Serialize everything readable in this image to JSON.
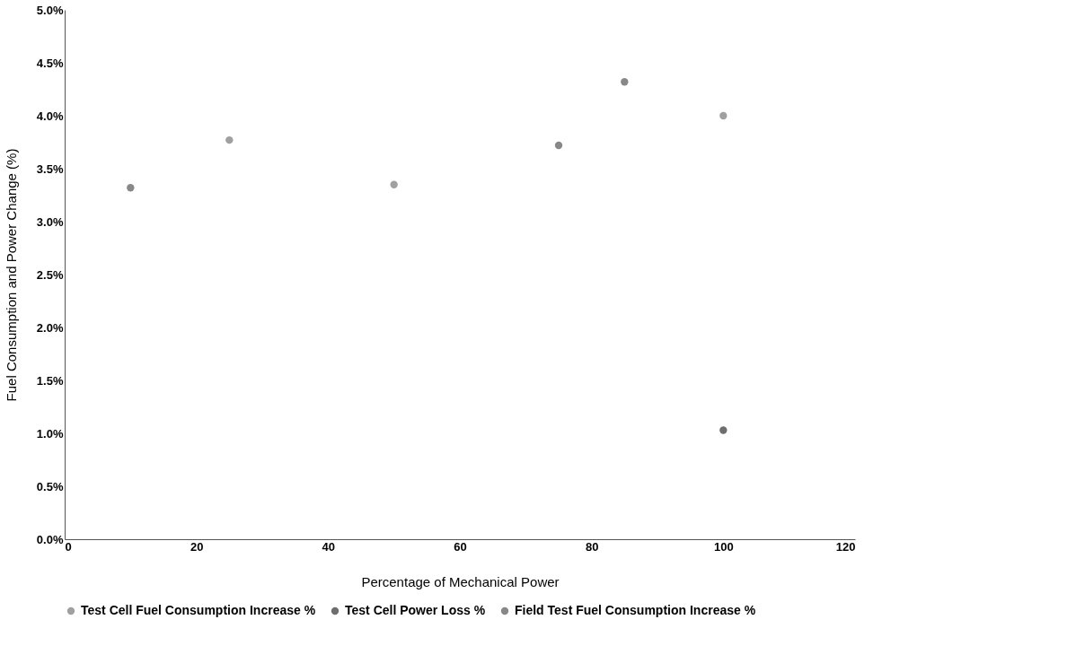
{
  "chart_data": {
    "type": "scatter",
    "xlabel": "Percentage of Mechanical Power",
    "ylabel": "Fuel Consumption and Power Change (%)",
    "xlim": [
      0,
      120
    ],
    "xticks": [
      0,
      20,
      40,
      60,
      80,
      100,
      120
    ],
    "ylim": [
      0,
      5
    ],
    "yticks": [
      {
        "value": 0,
        "label": "0.0%"
      },
      {
        "value": 0.5,
        "label": "0.5%"
      },
      {
        "value": 1,
        "label": "1.0%"
      },
      {
        "value": 1.5,
        "label": "1.5%"
      },
      {
        "value": 2,
        "label": "2.0%"
      },
      {
        "value": 2.5,
        "label": "2.5%"
      },
      {
        "value": 3,
        "label": "3.0%"
      },
      {
        "value": 3.5,
        "label": "3.5%"
      },
      {
        "value": 4,
        "label": "4.0%"
      },
      {
        "value": 4.5,
        "label": "4.5%"
      },
      {
        "value": 5,
        "label": "5.0%"
      }
    ],
    "grid": false,
    "legend": "bottom",
    "marker": "circle",
    "series": [
      {
        "name": "Test Cell Fuel Consumption Increase %",
        "color": "#a0a0a0",
        "x": [
          25,
          50,
          100
        ],
        "values": [
          3.77,
          3.35,
          4.0
        ]
      },
      {
        "name": "Test Cell Power Loss %",
        "color": "#6e6e6e",
        "x": [
          100
        ],
        "values": [
          1.03
        ]
      },
      {
        "name": "Field Test Fuel Consumption Increase %",
        "color": "#888888",
        "x": [
          10,
          75,
          85
        ],
        "values": [
          3.32,
          3.72,
          4.32
        ]
      }
    ]
  }
}
